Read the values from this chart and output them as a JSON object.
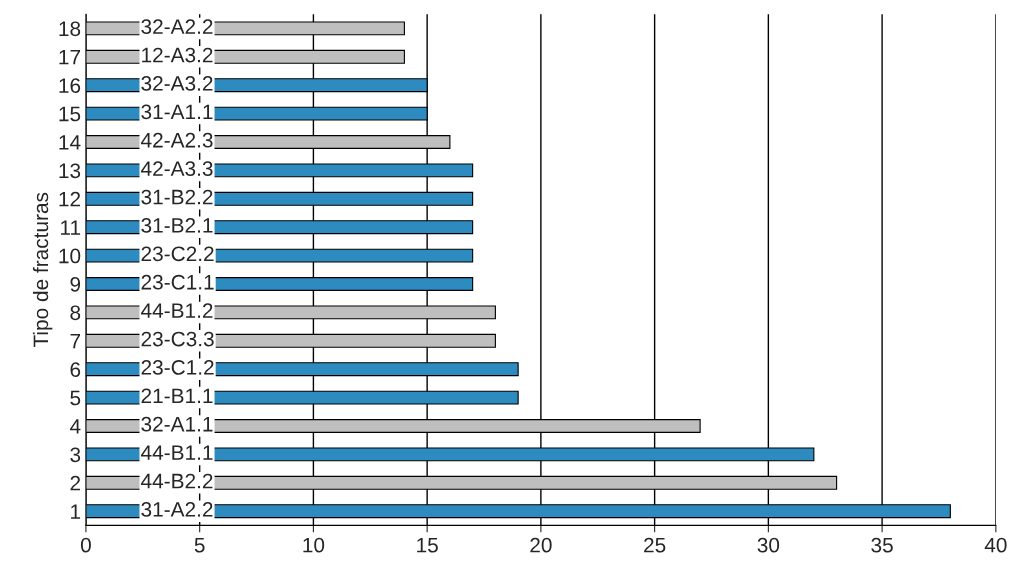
{
  "chart_data": {
    "type": "bar",
    "orientation": "horizontal",
    "ylabel": "Tipo de fracturas",
    "categories": [
      "18",
      "17",
      "16",
      "15",
      "14",
      "13",
      "12",
      "11",
      "10",
      "9",
      "8",
      "7",
      "6",
      "5",
      "4",
      "3",
      "2",
      "1"
    ],
    "values": [
      14,
      14,
      15,
      15,
      16,
      17,
      17,
      17,
      17,
      17,
      18,
      18,
      19,
      19,
      27,
      32,
      33,
      38
    ],
    "colors": [
      "#bfbfbf",
      "#bfbfbf",
      "#2e8bc0",
      "#2e8bc0",
      "#bfbfbf",
      "#2e8bc0",
      "#2e8bc0",
      "#2e8bc0",
      "#2e8bc0",
      "#2e8bc0",
      "#bfbfbf",
      "#bfbfbf",
      "#2e8bc0",
      "#2e8bc0",
      "#bfbfbf",
      "#2e8bc0",
      "#bfbfbf",
      "#2e8bc0"
    ],
    "xlim": [
      0,
      40
    ],
    "xticks": [
      0,
      5,
      10,
      15,
      20,
      25,
      30,
      35,
      40
    ],
    "grid": "x",
    "annotations": [
      "32-A2.2",
      "12-A3.2",
      "32-A3.2",
      "31-A1.1",
      "42-A2.3",
      "42-A3.3",
      "31-B2.2",
      "31-B2.1",
      "23-C2.2",
      "23-C1.1",
      "44-B1.2",
      "23-C3.3",
      "23-C1.2",
      "21-B1.1",
      "32-A1.1",
      "44-B1.1",
      "44-B2.2",
      "31-A2.2"
    ]
  }
}
